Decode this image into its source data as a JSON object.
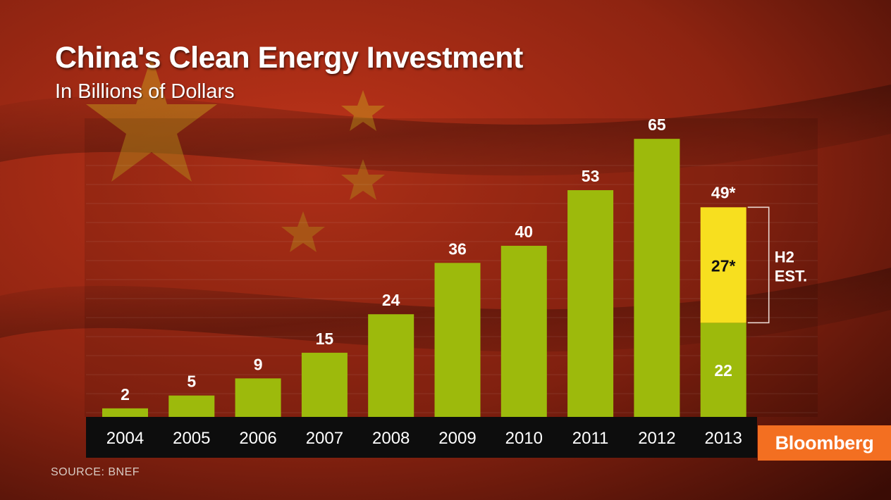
{
  "title": "China's Clean Energy Investment",
  "subtitle": "In Billions of Dollars",
  "source": "SOURCE:  BNEF",
  "brand": "Bloomberg",
  "colors": {
    "bar": "#9dba0c",
    "estimate": "#f7df1f",
    "axis_band": "#0d0d0d",
    "brand": "#f36f21",
    "background": "#8e2411"
  },
  "chart_data": {
    "type": "bar",
    "title": "China's Clean Energy Investment",
    "subtitle": "In Billions of Dollars",
    "categories": [
      "2004",
      "2005",
      "2006",
      "2007",
      "2008",
      "2009",
      "2010",
      "2011",
      "2012",
      "2013"
    ],
    "values": [
      2,
      5,
      9,
      15,
      24,
      36,
      40,
      53,
      65,
      22
    ],
    "value_labels": [
      "2",
      "5",
      "9",
      "15",
      "24",
      "36",
      "40",
      "53",
      "65",
      "22"
    ],
    "stacked_estimate": {
      "category": "2013",
      "value": 27,
      "label": "27*",
      "total": 49,
      "total_label": "49*",
      "bracket_label_lines": [
        "H2",
        "EST."
      ]
    },
    "ylim": [
      0,
      67
    ],
    "grid": true,
    "legend": "none"
  }
}
